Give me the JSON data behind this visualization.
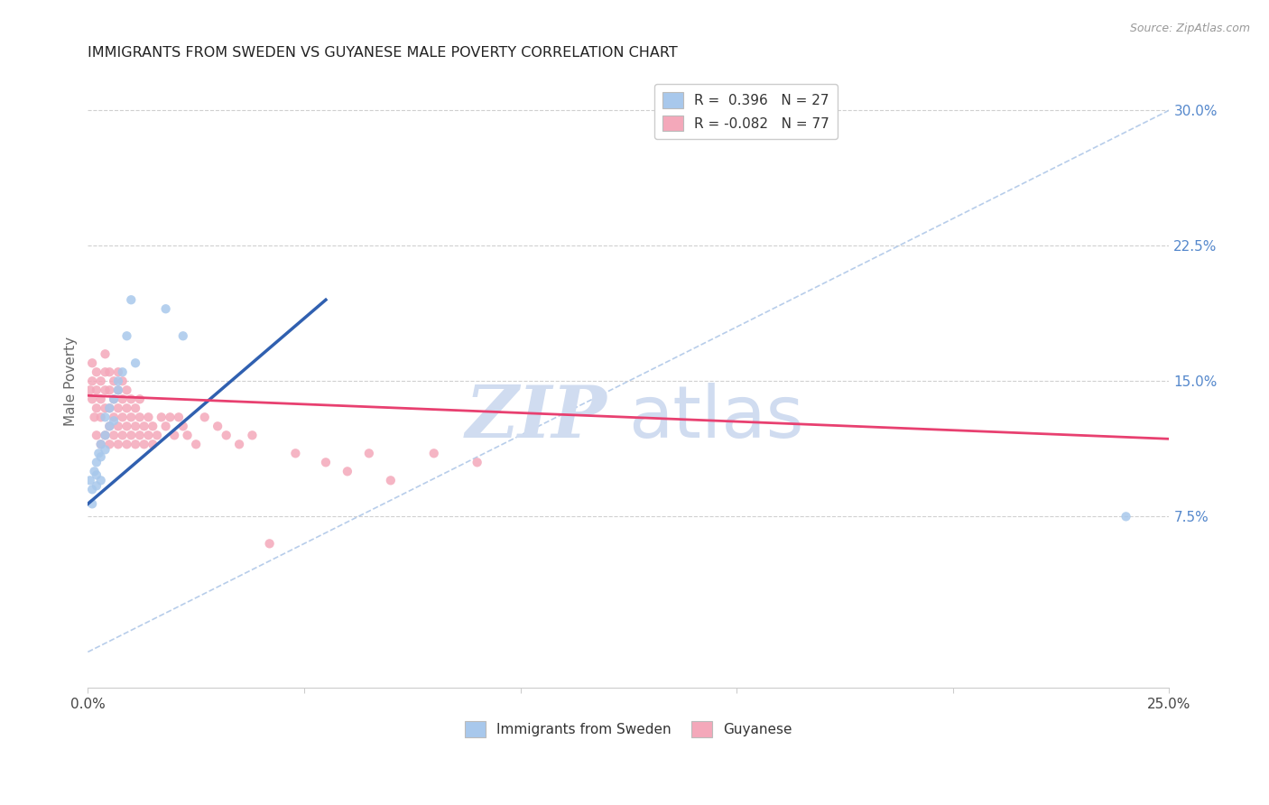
{
  "title": "IMMIGRANTS FROM SWEDEN VS GUYANESE MALE POVERTY CORRELATION CHART",
  "source": "Source: ZipAtlas.com",
  "ylabel": "Male Poverty",
  "right_yticks": [
    "30.0%",
    "22.5%",
    "15.0%",
    "7.5%"
  ],
  "right_ytick_vals": [
    0.3,
    0.225,
    0.15,
    0.075
  ],
  "legend_blue_label": "R =  0.396   N = 27",
  "legend_pink_label": "R = -0.082   N = 77",
  "legend_bottom_label1": "Immigrants from Sweden",
  "legend_bottom_label2": "Guyanese",
  "blue_scatter_x": [
    0.0005,
    0.001,
    0.001,
    0.0015,
    0.002,
    0.002,
    0.002,
    0.0025,
    0.003,
    0.003,
    0.003,
    0.004,
    0.004,
    0.004,
    0.005,
    0.005,
    0.006,
    0.006,
    0.007,
    0.007,
    0.008,
    0.009,
    0.01,
    0.011,
    0.018,
    0.022,
    0.24
  ],
  "blue_scatter_y": [
    0.095,
    0.082,
    0.09,
    0.1,
    0.098,
    0.105,
    0.092,
    0.11,
    0.108,
    0.115,
    0.095,
    0.112,
    0.12,
    0.13,
    0.125,
    0.135,
    0.14,
    0.128,
    0.145,
    0.15,
    0.155,
    0.175,
    0.195,
    0.16,
    0.19,
    0.175,
    0.075
  ],
  "pink_scatter_x": [
    0.0005,
    0.001,
    0.001,
    0.001,
    0.0015,
    0.002,
    0.002,
    0.002,
    0.002,
    0.003,
    0.003,
    0.003,
    0.003,
    0.004,
    0.004,
    0.004,
    0.004,
    0.004,
    0.005,
    0.005,
    0.005,
    0.005,
    0.005,
    0.006,
    0.006,
    0.006,
    0.006,
    0.007,
    0.007,
    0.007,
    0.007,
    0.007,
    0.008,
    0.008,
    0.008,
    0.008,
    0.009,
    0.009,
    0.009,
    0.009,
    0.01,
    0.01,
    0.01,
    0.011,
    0.011,
    0.011,
    0.012,
    0.012,
    0.012,
    0.013,
    0.013,
    0.014,
    0.014,
    0.015,
    0.015,
    0.016,
    0.017,
    0.018,
    0.019,
    0.02,
    0.021,
    0.022,
    0.023,
    0.025,
    0.027,
    0.03,
    0.032,
    0.035,
    0.038,
    0.042,
    0.048,
    0.055,
    0.06,
    0.065,
    0.07,
    0.08,
    0.09
  ],
  "pink_scatter_y": [
    0.145,
    0.14,
    0.15,
    0.16,
    0.13,
    0.12,
    0.135,
    0.145,
    0.155,
    0.115,
    0.13,
    0.14,
    0.15,
    0.12,
    0.135,
    0.145,
    0.155,
    0.165,
    0.115,
    0.125,
    0.135,
    0.145,
    0.155,
    0.12,
    0.13,
    0.14,
    0.15,
    0.115,
    0.125,
    0.135,
    0.145,
    0.155,
    0.12,
    0.13,
    0.14,
    0.15,
    0.115,
    0.125,
    0.135,
    0.145,
    0.12,
    0.13,
    0.14,
    0.115,
    0.125,
    0.135,
    0.12,
    0.13,
    0.14,
    0.115,
    0.125,
    0.12,
    0.13,
    0.115,
    0.125,
    0.12,
    0.13,
    0.125,
    0.13,
    0.12,
    0.13,
    0.125,
    0.12,
    0.115,
    0.13,
    0.125,
    0.12,
    0.115,
    0.12,
    0.06,
    0.11,
    0.105,
    0.1,
    0.11,
    0.095,
    0.11,
    0.105
  ],
  "blue_line_x": [
    0.0,
    0.055
  ],
  "blue_line_y": [
    0.082,
    0.195
  ],
  "pink_line_x": [
    0.0,
    0.25
  ],
  "pink_line_y": [
    0.142,
    0.118
  ],
  "dashed_line_x": [
    0.0,
    0.25
  ],
  "dashed_line_y": [
    0.0,
    0.3
  ],
  "xlim": [
    0.0,
    0.25
  ],
  "ylim": [
    -0.02,
    0.32
  ],
  "scatter_size": 55,
  "blue_color": "#A8C8EC",
  "pink_color": "#F4A8BA",
  "blue_line_color": "#3060B0",
  "pink_line_color": "#E84070",
  "dashed_color": "#B0C8E8",
  "watermark_zip": "ZIP",
  "watermark_atlas": "atlas",
  "watermark_color": "#D0DCF0",
  "background_color": "#FFFFFF",
  "grid_color": "#D0D0D0"
}
